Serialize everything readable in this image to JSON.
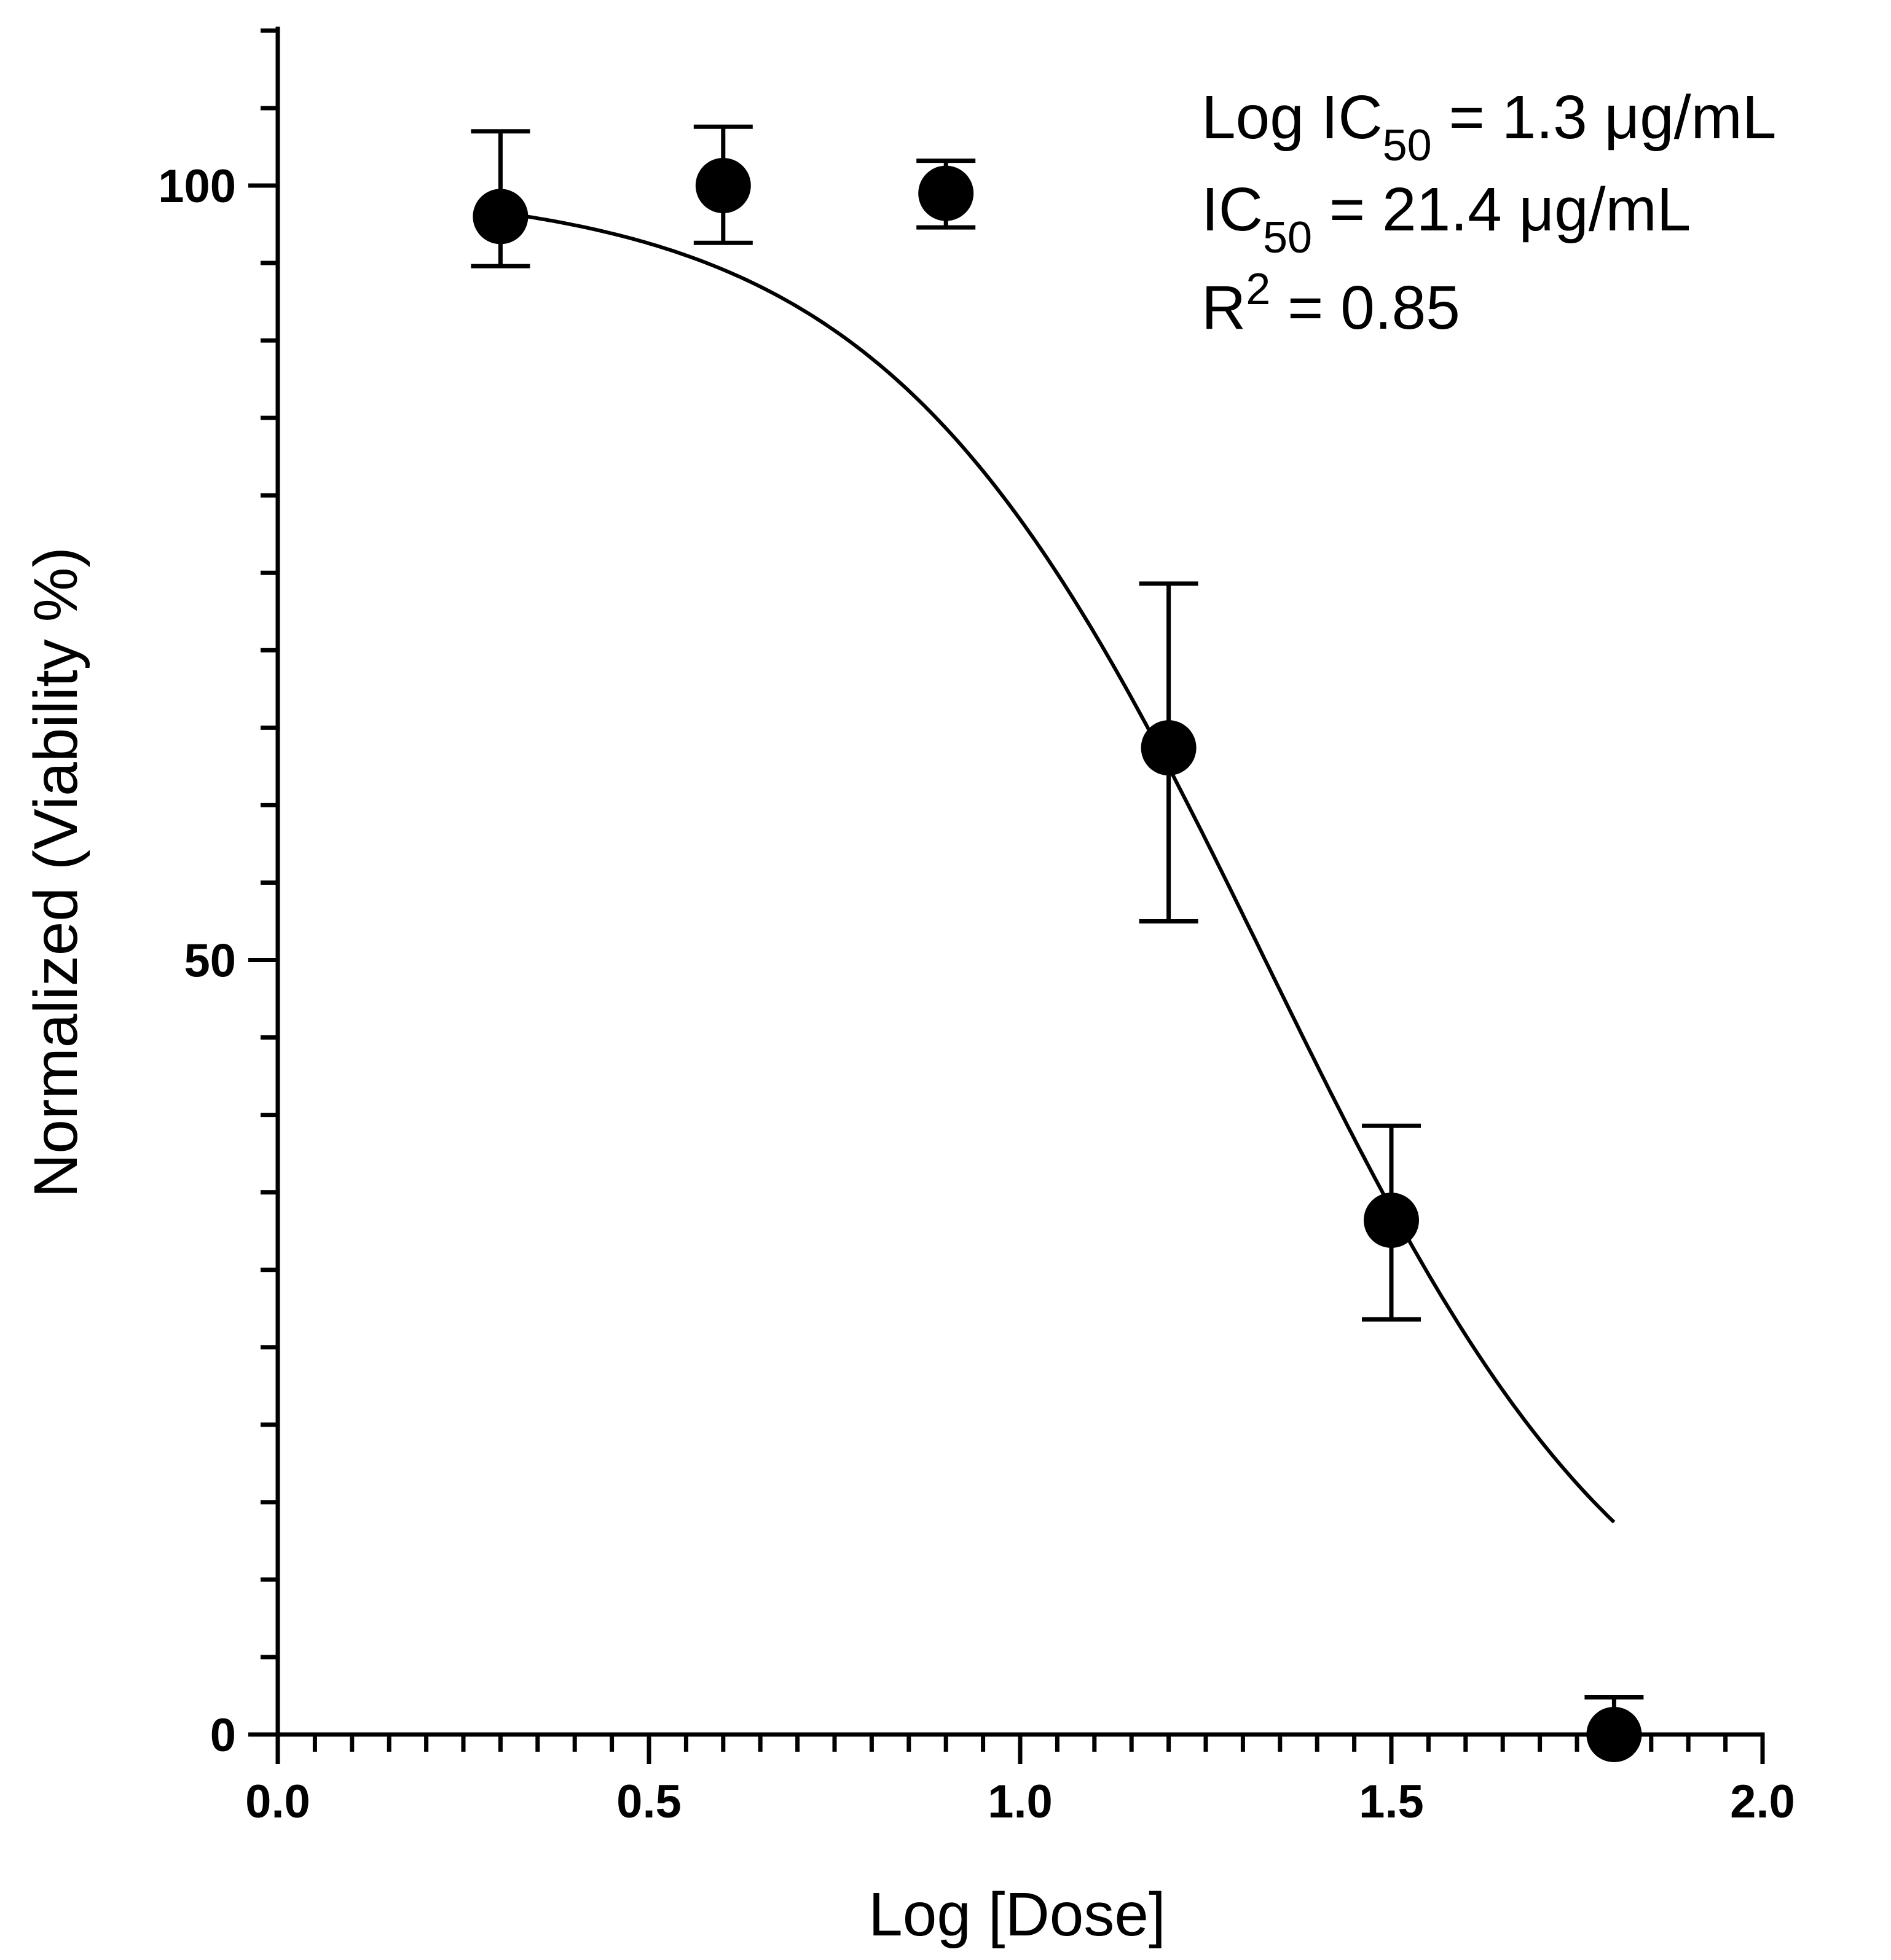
{
  "chart_data": {
    "type": "scatter",
    "title": "",
    "xlabel": "Log [Dose]",
    "ylabel": "Normalized (Viability %)",
    "xlim": [
      0.0,
      2.0
    ],
    "ylim": [
      0,
      110
    ],
    "x_ticks": [
      "0.0",
      "0.5",
      "1.0",
      "1.5",
      "2.0"
    ],
    "y_ticks": [
      "0",
      "50",
      "100"
    ],
    "grid": false,
    "series": [
      {
        "name": "Viability",
        "marker": "circle",
        "color": "#000000",
        "points": [
          {
            "x": 0.3,
            "y": 98.0,
            "err_hi": 103.5,
            "err_lo": 94.8
          },
          {
            "x": 0.6,
            "y": 100.0,
            "err_hi": 103.8,
            "err_lo": 96.3
          },
          {
            "x": 0.9,
            "y": 99.5,
            "err_hi": 101.6,
            "err_lo": 97.3
          },
          {
            "x": 1.2,
            "y": 63.7,
            "err_hi": 74.3,
            "err_lo": 52.5
          },
          {
            "x": 1.5,
            "y": 33.2,
            "err_hi": 39.3,
            "err_lo": 26.8
          },
          {
            "x": 1.8,
            "y": 0.0,
            "err_hi": 2.4,
            "err_lo": 0.0
          }
        ]
      }
    ],
    "fit": {
      "type": "four-parameter logistic",
      "top": 100,
      "bottom": 0,
      "log_ic50": 1.33,
      "hill_slope": 1.7,
      "x_range": [
        0.3,
        1.8
      ]
    },
    "annotations": {
      "log_ic50": {
        "prefix": "Log IC",
        "sub": "50",
        "suffix": " = 1.3  μg/mL"
      },
      "ic50": {
        "prefix": "IC",
        "sub": "50",
        "suffix": " = 21.4 μg/mL"
      },
      "r2": {
        "prefix": "R",
        "sup": "2",
        "suffix": " = 0.85"
      }
    }
  }
}
